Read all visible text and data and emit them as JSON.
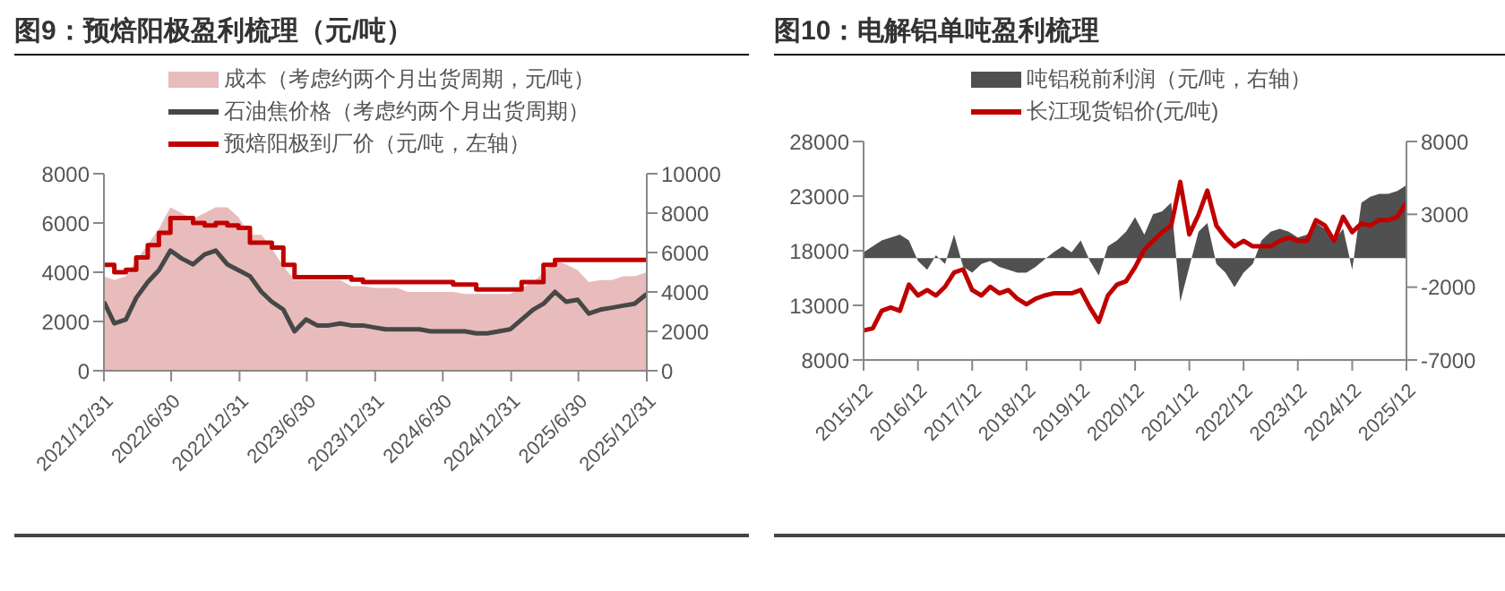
{
  "chart_data": [
    {
      "type": "line",
      "title": "图9：预焙阳极盈利梳理（元/吨）",
      "legend": "top",
      "x": [
        "2021-12-31",
        "2022-01-28",
        "2022-02-28",
        "2022-03-28",
        "2022-04-28",
        "2022-05-28",
        "2022-06-28",
        "2022-07-28",
        "2022-08-28",
        "2022-09-28",
        "2022-10-28",
        "2022-11-28",
        "2022-12-28",
        "2023-01-28",
        "2023-02-28",
        "2023-03-28",
        "2023-04-28",
        "2023-05-28",
        "2023-06-28",
        "2023-07-28",
        "2023-08-28",
        "2023-09-28",
        "2023-10-28",
        "2023-11-28",
        "2023-12-28",
        "2024-01-28",
        "2024-02-28",
        "2024-03-28",
        "2024-04-28",
        "2024-05-28",
        "2024-06-28",
        "2024-07-28",
        "2024-08-28",
        "2024-09-28",
        "2024-10-28",
        "2024-11-28",
        "2024-12-28",
        "2025-01-28",
        "2025-02-28",
        "2025-03-28",
        "2025-04-28",
        "2025-05-28",
        "2025-06-28",
        "2025-07-28",
        "2025-08-28",
        "2025-09-28",
        "2025-10-28",
        "2025-11-28",
        "2025-12-31"
      ],
      "xlim": [
        "2021-12-31",
        "2025-12-31"
      ],
      "xticks": [
        {
          "value": "2021-12-31",
          "label": "2021/12/31"
        },
        {
          "value": "2022-06-30",
          "label": "2022/6/30"
        },
        {
          "value": "2022-12-31",
          "label": "2022/12/31"
        },
        {
          "value": "2023-06-30",
          "label": "2023/6/30"
        },
        {
          "value": "2023-12-31",
          "label": "2023/12/31"
        },
        {
          "value": "2024-06-30",
          "label": "2024/6/30"
        },
        {
          "value": "2024-12-31",
          "label": "2024/12/31"
        },
        {
          "value": "2025-06-30",
          "label": "2025/6/30"
        },
        {
          "value": "2025-12-31",
          "label": "2025/12/31"
        }
      ],
      "ylim": [
        0,
        8000
      ],
      "yticks": [
        0,
        2000,
        4000,
        6000,
        8000
      ],
      "y2lim": [
        0,
        10000
      ],
      "y2ticks": [
        0,
        2000,
        4000,
        6000,
        8000,
        10000
      ],
      "series": [
        {
          "name": "成本（考虑约两个月出货周期，元/吨）",
          "type": "area",
          "axis": "y2",
          "color": "#e8bcbc",
          "values": [
            4800,
            4600,
            4800,
            5600,
            6400,
            7200,
            8300,
            8000,
            7700,
            8000,
            8300,
            8300,
            7800,
            6900,
            6900,
            6200,
            5300,
            4600,
            4600,
            4600,
            4600,
            4600,
            4300,
            4300,
            4200,
            4200,
            4200,
            4000,
            4000,
            4000,
            4000,
            4000,
            3900,
            3900,
            3900,
            3900,
            3900,
            4200,
            4500,
            5000,
            5600,
            5400,
            5100,
            4500,
            4600,
            4600,
            4800,
            4800,
            5000
          ]
        },
        {
          "name": "石油焦价格（考虑约两个月出货周期）",
          "axis": "y2",
          "color": "#474747",
          "values": [
            3500,
            2400,
            2600,
            3700,
            4500,
            5100,
            6100,
            5700,
            5400,
            5900,
            6100,
            5400,
            5100,
            4800,
            4000,
            3500,
            3100,
            2000,
            2600,
            2300,
            2300,
            2400,
            2300,
            2300,
            2200,
            2100,
            2100,
            2100,
            2100,
            2000,
            2000,
            2000,
            2000,
            1900,
            1900,
            2000,
            2100,
            2600,
            3100,
            3400,
            4000,
            3500,
            3600,
            2900,
            3100,
            3200,
            3300,
            3400,
            3900
          ]
        },
        {
          "name": "预焙阳极到厂价（元/吨，左轴）",
          "type": "step",
          "axis": "y",
          "color": "#c00000",
          "values": [
            4300,
            4000,
            4100,
            4600,
            5100,
            5600,
            6200,
            6200,
            6000,
            5900,
            6000,
            5900,
            5800,
            5200,
            5200,
            5000,
            4300,
            3800,
            3800,
            3800,
            3800,
            3800,
            3700,
            3600,
            3600,
            3600,
            3600,
            3600,
            3600,
            3600,
            3600,
            3500,
            3500,
            3300,
            3300,
            3300,
            3300,
            3600,
            3600,
            4300,
            4500,
            4500,
            4500,
            4500,
            4500,
            4500,
            4500,
            4500,
            4500
          ]
        }
      ]
    },
    {
      "type": "line",
      "title": "图10：电解铝单吨盈利梳理",
      "legend": "top",
      "x": [
        "2015-12",
        "2016-02",
        "2016-04",
        "2016-06",
        "2016-08",
        "2016-10",
        "2016-12",
        "2017-02",
        "2017-04",
        "2017-06",
        "2017-08",
        "2017-10",
        "2017-12",
        "2018-02",
        "2018-04",
        "2018-06",
        "2018-08",
        "2018-10",
        "2018-12",
        "2019-02",
        "2019-04",
        "2019-06",
        "2019-08",
        "2019-10",
        "2019-12",
        "2020-02",
        "2020-04",
        "2020-06",
        "2020-08",
        "2020-10",
        "2020-12",
        "2021-02",
        "2021-04",
        "2021-06",
        "2021-08",
        "2021-10",
        "2021-12",
        "2022-02",
        "2022-04",
        "2022-06",
        "2022-08",
        "2022-10",
        "2022-12",
        "2023-02",
        "2023-04",
        "2023-06",
        "2023-08",
        "2023-10",
        "2023-12",
        "2024-02",
        "2024-04",
        "2024-06",
        "2024-08",
        "2024-10",
        "2024-12",
        "2025-02",
        "2025-04",
        "2025-06",
        "2025-08",
        "2025-10",
        "2025-12"
      ],
      "xlim": [
        "2015-12",
        "2025-12"
      ],
      "xticks": [
        {
          "value": "2015-12",
          "label": "2015/12"
        },
        {
          "value": "2016-12",
          "label": "2016/12"
        },
        {
          "value": "2017-12",
          "label": "2017/12"
        },
        {
          "value": "2018-12",
          "label": "2018/12"
        },
        {
          "value": "2019-12",
          "label": "2019/12"
        },
        {
          "value": "2020-12",
          "label": "2020/12"
        },
        {
          "value": "2021-12",
          "label": "2021/12"
        },
        {
          "value": "2022-12",
          "label": "2022/12"
        },
        {
          "value": "2023-12",
          "label": "2023/12"
        },
        {
          "value": "2024-12",
          "label": "2024/12"
        },
        {
          "value": "2025-12",
          "label": "2025/12"
        }
      ],
      "ylim": [
        8000,
        28000
      ],
      "yticks": [
        8000,
        13000,
        18000,
        23000,
        28000
      ],
      "y2lim": [
        -7000,
        8000
      ],
      "y2ticks": [
        -7000,
        -2000,
        3000,
        8000
      ],
      "series": [
        {
          "name": "吨铝税前利润（元/吨，右轴）",
          "type": "area",
          "axis": "y2",
          "color": "#505050",
          "values": [
            400,
            800,
            1200,
            1400,
            1600,
            1200,
            -200,
            -800,
            200,
            -400,
            1600,
            -600,
            -1000,
            -400,
            -200,
            -600,
            -800,
            -1000,
            -1000,
            -600,
            -100,
            400,
            800,
            400,
            1200,
            -200,
            -1200,
            800,
            1200,
            1800,
            2800,
            1600,
            3000,
            3200,
            3800,
            -3000,
            -600,
            1800,
            2400,
            -400,
            -1000,
            -2000,
            -1000,
            -400,
            1200,
            1800,
            2000,
            1800,
            1400,
            1600,
            2400,
            2000,
            1200,
            2000,
            -800,
            3800,
            4200,
            4400,
            4400,
            4600,
            5000
          ]
        },
        {
          "name": "长江现货铝价(元/吨)",
          "axis": "y",
          "color": "#c00000",
          "values": [
            10700,
            10900,
            12500,
            12800,
            12500,
            14900,
            13900,
            14400,
            13900,
            14700,
            16000,
            16300,
            14400,
            13900,
            14700,
            14100,
            14400,
            13600,
            13100,
            13600,
            13900,
            14100,
            14100,
            14100,
            14400,
            12800,
            11500,
            13900,
            14900,
            15200,
            16500,
            18100,
            18900,
            19700,
            20300,
            24300,
            19500,
            21300,
            23500,
            20300,
            19200,
            18400,
            18900,
            18400,
            18400,
            18400,
            18900,
            19200,
            18900,
            18900,
            20800,
            20300,
            18900,
            21100,
            19700,
            20500,
            20300,
            20800,
            20800,
            21100,
            22400
          ]
        }
      ]
    }
  ]
}
